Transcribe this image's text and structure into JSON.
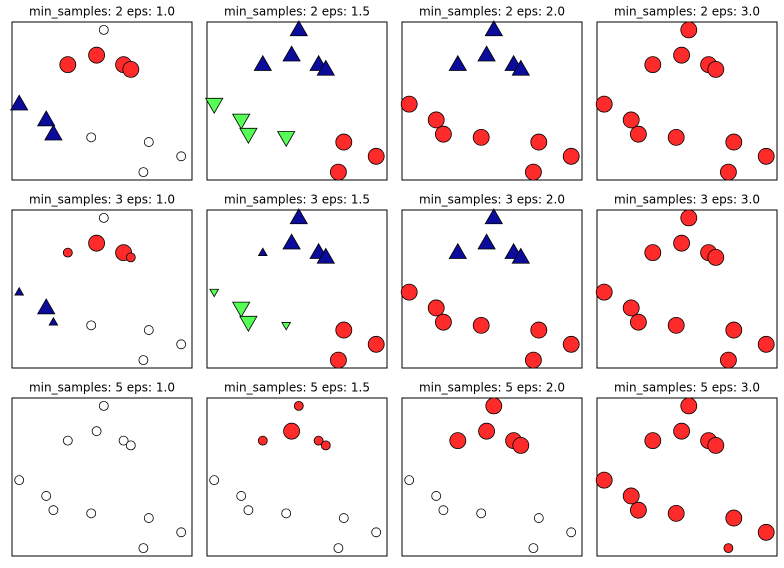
{
  "chart_data": [
    {
      "type": "scatter",
      "title": "min_samples: 2 eps: 1.0",
      "xlim": [
        0,
        100
      ],
      "ylim": [
        0,
        100
      ],
      "series": [
        {
          "color": "#ffffff",
          "marker": "o",
          "x": [
            51,
            44,
            76,
            94,
            73
          ],
          "y": [
            95,
            27,
            24,
            15,
            5
          ],
          "core": [
            false,
            false,
            false,
            false,
            false
          ]
        },
        {
          "color": "#ff2a2a",
          "marker": "o",
          "x": [
            31,
            47,
            62,
            66
          ],
          "y": [
            73,
            79,
            73,
            70
          ],
          "core": [
            true,
            true,
            true,
            true
          ]
        },
        {
          "color": "#0c0c9c",
          "marker": "^",
          "x": [
            4,
            19,
            23
          ],
          "y": [
            48,
            38,
            29
          ],
          "core": [
            true,
            true,
            true
          ]
        }
      ]
    },
    {
      "type": "scatter",
      "title": "min_samples: 2 eps: 1.5",
      "xlim": [
        0,
        100
      ],
      "ylim": [
        0,
        100
      ],
      "series": [
        {
          "color": "#ff2a2a",
          "marker": "o",
          "x": [
            76,
            94,
            73
          ],
          "y": [
            24,
            15,
            5
          ],
          "core": [
            true,
            true,
            true
          ]
        },
        {
          "color": "#0c0c9c",
          "marker": "^",
          "x": [
            51,
            31,
            47,
            62,
            66
          ],
          "y": [
            95,
            73,
            79,
            73,
            70
          ],
          "core": [
            true,
            true,
            true,
            true,
            true
          ]
        },
        {
          "color": "#55ff55",
          "marker": "v",
          "x": [
            4,
            19,
            23,
            44
          ],
          "y": [
            48,
            38,
            29,
            27
          ],
          "core": [
            true,
            true,
            true,
            true
          ]
        }
      ]
    },
    {
      "type": "scatter",
      "title": "min_samples: 2 eps: 2.0",
      "xlim": [
        0,
        100
      ],
      "ylim": [
        0,
        100
      ],
      "series": [
        {
          "color": "#0c0c9c",
          "marker": "^",
          "x": [
            51,
            31,
            47,
            62,
            66
          ],
          "y": [
            95,
            73,
            79,
            73,
            70
          ],
          "core": [
            true,
            true,
            true,
            true,
            true
          ]
        },
        {
          "color": "#ff2a2a",
          "marker": "o",
          "x": [
            4,
            19,
            23,
            44,
            76,
            94,
            73
          ],
          "y": [
            48,
            38,
            29,
            27,
            24,
            15,
            5
          ],
          "core": [
            true,
            true,
            true,
            true,
            true,
            true,
            true
          ]
        }
      ]
    },
    {
      "type": "scatter",
      "title": "min_samples: 2 eps: 3.0",
      "xlim": [
        0,
        100
      ],
      "ylim": [
        0,
        100
      ],
      "series": [
        {
          "color": "#ff2a2a",
          "marker": "o",
          "x": [
            51,
            31,
            47,
            62,
            66,
            4,
            19,
            23,
            44,
            76,
            94,
            73
          ],
          "y": [
            95,
            73,
            79,
            73,
            70,
            48,
            38,
            29,
            27,
            24,
            15,
            5
          ],
          "core": [
            true,
            true,
            true,
            true,
            true,
            true,
            true,
            true,
            true,
            true,
            true,
            true
          ]
        }
      ]
    },
    {
      "type": "scatter",
      "title": "min_samples: 3 eps: 1.0",
      "xlim": [
        0,
        100
      ],
      "ylim": [
        0,
        100
      ],
      "series": [
        {
          "color": "#ffffff",
          "marker": "o",
          "x": [
            51,
            44,
            76,
            94,
            73
          ],
          "y": [
            95,
            27,
            24,
            15,
            5
          ],
          "core": [
            false,
            false,
            false,
            false,
            false
          ]
        },
        {
          "color": "#ff2a2a",
          "marker": "o",
          "x": [
            31,
            47,
            62,
            66
          ],
          "y": [
            73,
            79,
            73,
            70
          ],
          "core": [
            false,
            true,
            true,
            false
          ]
        },
        {
          "color": "#0c0c9c",
          "marker": "^",
          "x": [
            4,
            19,
            23
          ],
          "y": [
            48,
            38,
            29
          ],
          "core": [
            false,
            true,
            false
          ]
        }
      ]
    },
    {
      "type": "scatter",
      "title": "min_samples: 3 eps: 1.5",
      "xlim": [
        0,
        100
      ],
      "ylim": [
        0,
        100
      ],
      "series": [
        {
          "color": "#ff2a2a",
          "marker": "o",
          "x": [
            76,
            94,
            73
          ],
          "y": [
            24,
            15,
            5
          ],
          "core": [
            true,
            true,
            true
          ]
        },
        {
          "color": "#0c0c9c",
          "marker": "^",
          "x": [
            51,
            31,
            47,
            62,
            66
          ],
          "y": [
            95,
            73,
            79,
            73,
            70
          ],
          "core": [
            true,
            false,
            true,
            true,
            true
          ]
        },
        {
          "color": "#55ff55",
          "marker": "v",
          "x": [
            4,
            19,
            23,
            44
          ],
          "y": [
            48,
            38,
            29,
            27
          ],
          "core": [
            false,
            true,
            true,
            false
          ]
        }
      ]
    },
    {
      "type": "scatter",
      "title": "min_samples: 3 eps: 2.0",
      "xlim": [
        0,
        100
      ],
      "ylim": [
        0,
        100
      ],
      "series": [
        {
          "color": "#0c0c9c",
          "marker": "^",
          "x": [
            51,
            31,
            47,
            62,
            66
          ],
          "y": [
            95,
            73,
            79,
            73,
            70
          ],
          "core": [
            true,
            true,
            true,
            true,
            true
          ]
        },
        {
          "color": "#ff2a2a",
          "marker": "o",
          "x": [
            4,
            19,
            23,
            44,
            76,
            94,
            73
          ],
          "y": [
            48,
            38,
            29,
            27,
            24,
            15,
            5
          ],
          "core": [
            true,
            true,
            true,
            true,
            true,
            true,
            true
          ]
        }
      ]
    },
    {
      "type": "scatter",
      "title": "min_samples: 3 eps: 3.0",
      "xlim": [
        0,
        100
      ],
      "ylim": [
        0,
        100
      ],
      "series": [
        {
          "color": "#ff2a2a",
          "marker": "o",
          "x": [
            51,
            31,
            47,
            62,
            66,
            4,
            19,
            23,
            44,
            76,
            94,
            73
          ],
          "y": [
            95,
            73,
            79,
            73,
            70,
            48,
            38,
            29,
            27,
            24,
            15,
            5
          ],
          "core": [
            true,
            true,
            true,
            true,
            true,
            true,
            true,
            true,
            true,
            true,
            true,
            true
          ]
        }
      ]
    },
    {
      "type": "scatter",
      "title": "min_samples: 5 eps: 1.0",
      "xlim": [
        0,
        100
      ],
      "ylim": [
        0,
        100
      ],
      "series": [
        {
          "color": "#ffffff",
          "marker": "o",
          "x": [
            51,
            31,
            47,
            62,
            66,
            4,
            19,
            23,
            44,
            76,
            94,
            73
          ],
          "y": [
            95,
            73,
            79,
            73,
            70,
            48,
            38,
            29,
            27,
            24,
            15,
            5
          ],
          "core": [
            false,
            false,
            false,
            false,
            false,
            false,
            false,
            false,
            false,
            false,
            false,
            false
          ]
        }
      ]
    },
    {
      "type": "scatter",
      "title": "min_samples: 5 eps: 1.5",
      "xlim": [
        0,
        100
      ],
      "ylim": [
        0,
        100
      ],
      "series": [
        {
          "color": "#ffffff",
          "marker": "o",
          "x": [
            4,
            19,
            23,
            44,
            76,
            94,
            73
          ],
          "y": [
            48,
            38,
            29,
            27,
            24,
            15,
            5
          ],
          "core": [
            false,
            false,
            false,
            false,
            false,
            false,
            false
          ]
        },
        {
          "color": "#ff2a2a",
          "marker": "o",
          "x": [
            51,
            31,
            47,
            62,
            66
          ],
          "y": [
            95,
            73,
            79,
            73,
            70
          ],
          "core": [
            false,
            false,
            true,
            false,
            false
          ]
        }
      ]
    },
    {
      "type": "scatter",
      "title": "min_samples: 5 eps: 2.0",
      "xlim": [
        0,
        100
      ],
      "ylim": [
        0,
        100
      ],
      "series": [
        {
          "color": "#ffffff",
          "marker": "o",
          "x": [
            4,
            19,
            23,
            44,
            76,
            94,
            73
          ],
          "y": [
            48,
            38,
            29,
            27,
            24,
            15,
            5
          ],
          "core": [
            false,
            false,
            false,
            false,
            false,
            false,
            false
          ]
        },
        {
          "color": "#ff2a2a",
          "marker": "o",
          "x": [
            51,
            31,
            47,
            62,
            66
          ],
          "y": [
            95,
            73,
            79,
            73,
            70
          ],
          "core": [
            true,
            true,
            true,
            true,
            true
          ]
        }
      ]
    },
    {
      "type": "scatter",
      "title": "min_samples: 5 eps: 3.0",
      "xlim": [
        0,
        100
      ],
      "ylim": [
        0,
        100
      ],
      "series": [
        {
          "color": "#ff2a2a",
          "marker": "o",
          "x": [
            51,
            31,
            47,
            62,
            66,
            4,
            19,
            23,
            44,
            76,
            94,
            73
          ],
          "y": [
            95,
            73,
            79,
            73,
            70,
            48,
            38,
            29,
            27,
            24,
            15,
            5
          ],
          "core": [
            true,
            true,
            true,
            true,
            true,
            true,
            true,
            true,
            true,
            true,
            true,
            false
          ]
        }
      ]
    }
  ]
}
